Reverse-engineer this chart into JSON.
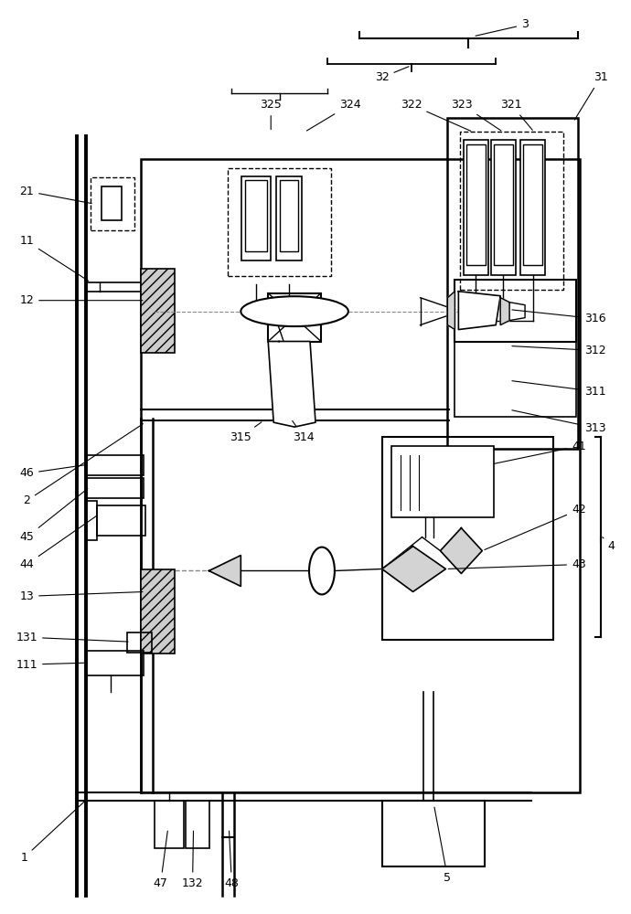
{
  "bg_color": "#ffffff",
  "line_color": "#000000",
  "label_configs": [
    [
      "1",
      25,
      940,
      95,
      875
    ],
    [
      "2",
      28,
      548,
      158,
      462
    ],
    [
      "3",
      575,
      25,
      518,
      38
    ],
    [
      "4",
      670,
      598,
      660,
      588
    ],
    [
      "5",
      490,
      962,
      475,
      882
    ],
    [
      "11",
      28,
      263,
      98,
      308
    ],
    [
      "12",
      28,
      328,
      158,
      328
    ],
    [
      "13",
      28,
      653,
      158,
      648
    ],
    [
      "21",
      28,
      208,
      102,
      222
    ],
    [
      "31",
      658,
      83,
      628,
      132
    ],
    [
      "32",
      418,
      83,
      450,
      70
    ],
    [
      "41",
      634,
      488,
      538,
      508
    ],
    [
      "42",
      634,
      558,
      528,
      603
    ],
    [
      "43",
      634,
      618,
      488,
      623
    ],
    [
      "44",
      28,
      618,
      107,
      563
    ],
    [
      "45",
      28,
      588,
      97,
      533
    ],
    [
      "46",
      28,
      518,
      97,
      508
    ],
    [
      "47",
      175,
      968,
      183,
      908
    ],
    [
      "48",
      253,
      968,
      250,
      908
    ],
    [
      "111",
      28,
      728,
      97,
      726
    ],
    [
      "131",
      28,
      698,
      142,
      703
    ],
    [
      "132",
      210,
      968,
      211,
      908
    ],
    [
      "311",
      652,
      428,
      558,
      416
    ],
    [
      "312",
      652,
      383,
      558,
      378
    ],
    [
      "313",
      652,
      468,
      558,
      448
    ],
    [
      "314",
      332,
      478,
      318,
      458
    ],
    [
      "315",
      263,
      478,
      288,
      460
    ],
    [
      "316",
      652,
      348,
      558,
      338
    ],
    [
      "321",
      560,
      113,
      585,
      143
    ],
    [
      "322",
      450,
      113,
      518,
      143
    ],
    [
      "323",
      506,
      113,
      551,
      143
    ],
    [
      "324",
      383,
      113,
      333,
      143
    ],
    [
      "325",
      296,
      113,
      296,
      143
    ]
  ]
}
